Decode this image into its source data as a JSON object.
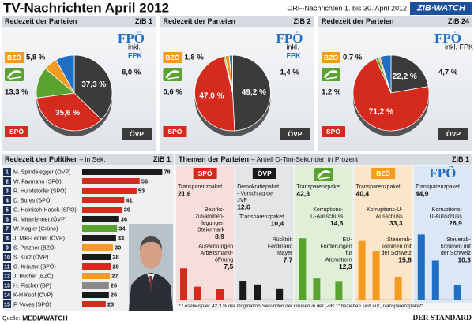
{
  "title": "TV-Nachrichten April 2012",
  "subtitle": "ORF-Nachrichten 1. bis 30. April 2012",
  "badge": "ZIB·WATCH",
  "chart_data": [
    {
      "type": "pie",
      "title": "Redezeit der Parteien",
      "label": "ZiB 1",
      "categories": [
        "ÖVP",
        "SPÖ",
        null,
        "BZÖ",
        "FPÖ"
      ],
      "fpk_note": [
        "inkl.",
        "FPK"
      ],
      "values": [
        37.3,
        35.6,
        13.3,
        5.8,
        8.0
      ],
      "value_labels": [
        "37,3 %",
        "35,6 %",
        "13,3 %",
        "5,8 %",
        "8,0 %"
      ],
      "colors": [
        "#3b3b3b",
        "#d52b1e",
        "#5ba331",
        "#f39b1f",
        "#1f6fc5"
      ]
    },
    {
      "type": "pie",
      "title": "Redezeit der Parteien",
      "label": "ZiB 2",
      "categories": [
        "ÖVP",
        "SPÖ",
        null,
        "BZÖ",
        "FPÖ"
      ],
      "fpk_note": [
        "inkl.",
        "FPK"
      ],
      "values": [
        49.2,
        47.0,
        0.6,
        1.8,
        1.4
      ],
      "value_labels": [
        "49,2 %",
        "47,0 %",
        "0,6 %",
        "1,8 %",
        "1,4 %"
      ],
      "colors": [
        "#3b3b3b",
        "#d52b1e",
        "#5ba331",
        "#f39b1f",
        "#1f6fc5"
      ]
    },
    {
      "type": "pie",
      "title": "Redezeit der Parteien",
      "label": "ZiB 24",
      "categories": [
        "ÖVP",
        "SPÖ",
        null,
        "BZÖ",
        "FPÖ"
      ],
      "fpk_note": [
        "inkl. FPK"
      ],
      "values": [
        22.2,
        71.2,
        1.2,
        0.7,
        4.7
      ],
      "value_labels": [
        "22,2 %",
        "71,2 %",
        "1,2 %",
        "0,7 %",
        "4,7 %"
      ],
      "colors": [
        "#3b3b3b",
        "#d52b1e",
        "#5ba331",
        "#f39b1f",
        "#1f6fc5"
      ]
    },
    {
      "type": "hbar",
      "title": "Redezeit der Politiker",
      "subtitle": "– in Sek.",
      "label": "ZiB 1",
      "ranks": [
        1,
        2,
        3,
        4,
        5,
        6,
        7,
        8,
        9,
        10,
        11,
        12,
        13,
        14,
        15
      ],
      "categories": [
        "M. Spindelegger (ÖVP)",
        "W. Faymann (SPÖ)",
        "R. Hundstorfer (SPÖ)",
        "D. Bures (SPÖ)",
        "G. Heinisch-Hosek (SPÖ)",
        "R. Mitterlehner (ÖVP)",
        "W. Kogler (Grüne)",
        "J. Mikl-Leitner (ÖVP)",
        "S. Petzner (BZÖ)",
        "S. Kurz (ÖVP)",
        "G. Kräuter (SPÖ)",
        "J. Bucher (BZÖ)",
        "H. Fischer (BP)",
        "K-H Kopf (ÖVP)",
        "F. Voves (SPÖ)"
      ],
      "values": [
        78,
        56,
        53,
        41,
        39,
        36,
        34,
        33,
        30,
        28,
        28,
        27,
        26,
        26,
        23
      ],
      "colors": [
        "#1a1a1a",
        "#d52b1e",
        "#d52b1e",
        "#d52b1e",
        "#d52b1e",
        "#1a1a1a",
        "#5ba331",
        "#1a1a1a",
        "#f39b1f",
        "#1a1a1a",
        "#d52b1e",
        "#f39b1f",
        "#8a8a8a",
        "#1a1a1a",
        "#d52b1e"
      ],
      "xlim": [
        0,
        80
      ]
    },
    {
      "type": "bar",
      "title": "Themen der Parteien",
      "subtitle": "– Anteil O-Ton-Sekunden in Prozent",
      "label": "ZiB 1",
      "ylim": [
        0,
        50
      ],
      "panels": [
        {
          "party": "SPÖ",
          "color": "#d52b1e",
          "background": "#f6dedb",
          "categories": [
            [
              "Transparenzpaket"
            ],
            [
              "Bezirks-",
              "zusammen-",
              "legungen",
              "Steiermark"
            ],
            [
              "Auswirkungen",
              "Arbeitsmarkt-",
              "öffnung"
            ]
          ],
          "values": [
            21.6,
            8.9,
            7.5
          ],
          "value_labels": [
            "21,6",
            "8,9",
            "7,5"
          ]
        },
        {
          "party": "ÖVP",
          "color": "#1a1a1a",
          "background": "#e4e5e7",
          "categories": [
            [
              "Demokratiepaket",
              "- Vorschlag der",
              "JVP"
            ],
            [
              "Transparenzpaket"
            ],
            [
              "Rücktritt",
              "Ferdinand",
              "Mayer"
            ]
          ],
          "values": [
            12.6,
            10.4,
            7.7
          ],
          "value_labels": [
            "12,6",
            "10,4",
            "7,7"
          ]
        },
        {
          "party": null,
          "color": "#5ba331",
          "background": "#e2efd8",
          "categories": [
            [
              "Transparenzpaket"
            ],
            [
              "Korruptions-",
              "U-Ausschuss"
            ],
            [
              "EU-",
              "Förderungen",
              "für",
              "Atomstrom"
            ]
          ],
          "values": [
            42.3,
            14.6,
            12.3
          ],
          "value_labels": [
            "42,3",
            "14,6",
            "12,3"
          ]
        },
        {
          "party": "BZÖ",
          "color": "#f39b1f",
          "background": "#fbe6c9",
          "categories": [
            [
              "Transparenzpaket"
            ],
            [
              "Korruptions-U-",
              "Ausschuss"
            ],
            [
              "Steuerab-",
              "kommen mit",
              "der Schweiz"
            ]
          ],
          "values": [
            40.4,
            33.3,
            15.8
          ],
          "value_labels": [
            "40,4",
            "33,3",
            "15,8"
          ]
        },
        {
          "party": "FPÖ",
          "color": "#1f6fc5",
          "background": "#dbe7f4",
          "categories": [
            [
              "Transparenzpaket"
            ],
            [
              "Korruptions-",
              "U-Ausschuss"
            ],
            [
              "Steuerab-",
              "kommen mit",
              "der Schweiz"
            ]
          ],
          "values": [
            44.9,
            26.9,
            10.3
          ],
          "value_labels": [
            "44,9",
            "26,9",
            "10,3"
          ]
        }
      ],
      "footnote": "* Lesebeispiel: 42,3 % der Originalton-Sekunden der Grünen in der „ZiB 1“ beziehen sich auf „Transparenzpaket“"
    }
  ],
  "source_label": "Quelle:",
  "source": "MEDIAWATCH",
  "publisher": "DER STANDARD"
}
